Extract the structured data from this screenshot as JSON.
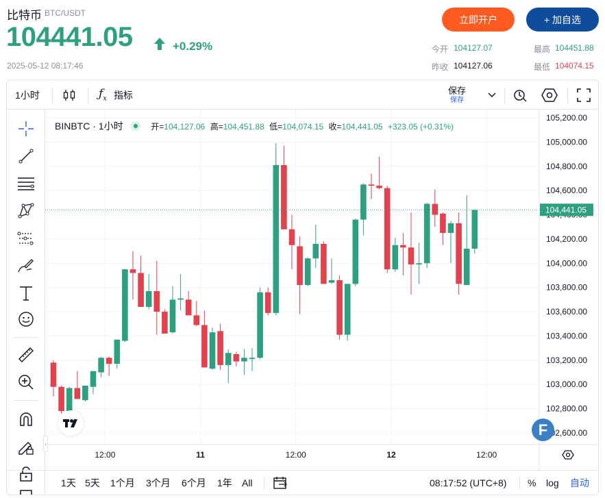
{
  "header": {
    "name": "比特币",
    "pair": "BTC/USDT",
    "price": "104441.05",
    "change": "+0.29%",
    "datetime": "2025-05-12 08:17:46",
    "open_account_label": "立即开户",
    "add_watch_label": "+ 加自选",
    "stats": {
      "today_open_label": "今开",
      "today_open": "104127.07",
      "high_label": "最高",
      "high": "104451.88",
      "prev_close_label": "昨收",
      "prev_close": "104127.06",
      "low_label": "最低",
      "low": "104074.15"
    },
    "colors": {
      "up": "#2ea07f",
      "down": "#e0424e",
      "open_btn": "#ff5a1f",
      "watch_btn": "#0f4c9c"
    }
  },
  "toolbar": {
    "interval": "1小时",
    "indicators_label": "指标",
    "save_label": "保存",
    "save_sub": "保存"
  },
  "legend": {
    "symbol": "BINBTC · 1小时",
    "open_label": "开=",
    "open": "104,127.06",
    "high_label": "高=",
    "high": "104,451.88",
    "low_label": "低=",
    "low": "104,074.15",
    "close_label": "收=",
    "close": "104,441.05",
    "change": "+323.05 (+0.31%)"
  },
  "bottom": {
    "ranges": [
      "1天",
      "5天",
      "1个月",
      "3个月",
      "6个月",
      "1年",
      "All"
    ],
    "time": "08:17:52 (UTC+8)",
    "percent_label": "%",
    "log_label": "log",
    "auto_label": "自动"
  },
  "chart_data": {
    "type": "candlestick",
    "ylim": [
      102500,
      105300
    ],
    "y_ticks": [
      "105,200.00",
      "105,000.00",
      "104,800.00",
      "104,600.00",
      "104,400.00",
      "104,200.00",
      "104,000.00",
      "103,800.00",
      "103,600.00",
      "103,400.00",
      "103,200.00",
      "103,000.00",
      "102,800.00",
      "102,600.00"
    ],
    "y_tick_values": [
      105200,
      105000,
      104800,
      104600,
      104400,
      104200,
      104000,
      103800,
      103600,
      103400,
      103200,
      103000,
      102800,
      102600
    ],
    "x_ticks": [
      {
        "label": "12:00",
        "index": 6.5
      },
      {
        "label": "11",
        "index": 18.5
      },
      {
        "label": "12:00",
        "index": 30.5
      },
      {
        "label": "12",
        "index": 42.5
      },
      {
        "label": "12:00",
        "index": 54.5
      }
    ],
    "last_price": 104441.05,
    "last_price_label": "104,441.05",
    "candles": [
      [
        103180,
        103200,
        102900,
        102980
      ],
      [
        102980,
        102990,
        102760,
        102780
      ],
      [
        102770,
        102980,
        102760,
        102970
      ],
      [
        102970,
        103110,
        102880,
        102880
      ],
      [
        102870,
        102990,
        102860,
        102990
      ],
      [
        102980,
        103110,
        102920,
        103110
      ],
      [
        103100,
        103230,
        103060,
        103220
      ],
      [
        103220,
        103230,
        103070,
        103170
      ],
      [
        103170,
        103370,
        103130,
        103370
      ],
      [
        103360,
        103950,
        103350,
        103950
      ],
      [
        103950,
        104100,
        103700,
        103920
      ],
      [
        103920,
        104060,
        103640,
        103640
      ],
      [
        103640,
        103910,
        103620,
        103770
      ],
      [
        103770,
        104020,
        103410,
        103600
      ],
      [
        103600,
        103620,
        103420,
        103420
      ],
      [
        103430,
        103810,
        103420,
        103700
      ],
      [
        103700,
        103910,
        103610,
        103710
      ],
      [
        103700,
        103770,
        103570,
        103570
      ],
      [
        103570,
        103690,
        103480,
        103490
      ],
      [
        103490,
        103610,
        103140,
        103140
      ],
      [
        103130,
        103470,
        103120,
        103430
      ],
      [
        103440,
        103500,
        103120,
        103160
      ],
      [
        103160,
        103290,
        103010,
        103260
      ],
      [
        103250,
        103270,
        103150,
        103190
      ],
      [
        103190,
        103290,
        103080,
        103220
      ],
      [
        103210,
        103300,
        103110,
        103220
      ],
      [
        103220,
        103800,
        103210,
        103760
      ],
      [
        103760,
        103800,
        103570,
        103590
      ],
      [
        103590,
        104990,
        103570,
        104810
      ],
      [
        104810,
        104970,
        104280,
        104280
      ],
      [
        104280,
        104400,
        103950,
        104150
      ],
      [
        104140,
        104220,
        103580,
        103820
      ],
      [
        103820,
        104050,
        103810,
        104040
      ],
      [
        104040,
        104320,
        103960,
        104160
      ],
      [
        104160,
        104180,
        103830,
        103830
      ],
      [
        103840,
        104040,
        103830,
        103860
      ],
      [
        103860,
        103900,
        103370,
        103410
      ],
      [
        103410,
        103830,
        103360,
        103830
      ],
      [
        103830,
        104370,
        103810,
        104360
      ],
      [
        104360,
        104660,
        104230,
        104650
      ],
      [
        104650,
        104740,
        104530,
        104640
      ],
      [
        104640,
        104880,
        104610,
        104620
      ],
      [
        104620,
        104640,
        103920,
        103950
      ],
      [
        103950,
        104210,
        103930,
        104150
      ],
      [
        104150,
        104250,
        103900,
        104130
      ],
      [
        104130,
        104420,
        103740,
        103990
      ],
      [
        103990,
        104170,
        103830,
        104000
      ],
      [
        104000,
        104500,
        103960,
        104490
      ],
      [
        104490,
        104610,
        104300,
        104400
      ],
      [
        104410,
        104420,
        104150,
        104250
      ],
      [
        104250,
        104350,
        104000,
        104330
      ],
      [
        104330,
        104420,
        103740,
        103830
      ],
      [
        103820,
        104560,
        103840,
        104120
      ],
      [
        104120,
        104440,
        104080,
        104440
      ]
    ]
  }
}
